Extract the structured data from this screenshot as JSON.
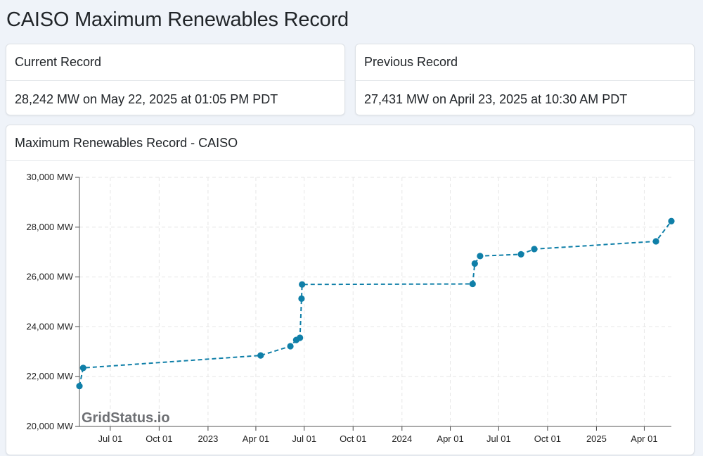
{
  "page": {
    "title": "CAISO Maximum Renewables Record"
  },
  "current_record": {
    "header": "Current Record",
    "value": "28,242 MW on May 22, 2025 at 01:05 PM PDT"
  },
  "previous_record": {
    "header": "Previous Record",
    "value": "27,431 MW on April 23, 2025 at 10:30 AM PDT"
  },
  "chart_card": {
    "header": "Maximum Renewables Record - CAISO",
    "watermark": "GridStatus.io"
  },
  "colors": {
    "series": "#0f7fa8",
    "grid": "#e6e6e6"
  },
  "chart_data": {
    "type": "line",
    "title": "Maximum Renewables Record - CAISO",
    "xlabel": "",
    "ylabel": "",
    "x_range": [
      "2022-05-04",
      "2025-05-22"
    ],
    "ylim": [
      20000,
      30000
    ],
    "grid": true,
    "line_style": "dashed",
    "markers": true,
    "y_ticks": [
      {
        "value": 20000,
        "label": "20,000 MW"
      },
      {
        "value": 22000,
        "label": "22,000 MW"
      },
      {
        "value": 24000,
        "label": "24,000 MW"
      },
      {
        "value": 26000,
        "label": "26,000 MW"
      },
      {
        "value": 28000,
        "label": "28,000 MW"
      },
      {
        "value": 30000,
        "label": "30,000 MW"
      }
    ],
    "x_ticks": [
      {
        "date": "2022-07-01",
        "label": "Jul 01"
      },
      {
        "date": "2022-10-01",
        "label": "Oct 01"
      },
      {
        "date": "2023-01-01",
        "label": "2023"
      },
      {
        "date": "2023-04-01",
        "label": "Apr 01"
      },
      {
        "date": "2023-07-01",
        "label": "Jul 01"
      },
      {
        "date": "2023-10-01",
        "label": "Oct 01"
      },
      {
        "date": "2024-01-01",
        "label": "2024"
      },
      {
        "date": "2024-04-01",
        "label": "Apr 01"
      },
      {
        "date": "2024-07-01",
        "label": "Jul 01"
      },
      {
        "date": "2024-10-01",
        "label": "Oct 01"
      },
      {
        "date": "2025-01-01",
        "label": "2025"
      },
      {
        "date": "2025-04-01",
        "label": "Apr 01"
      }
    ],
    "series": [
      {
        "points": [
          {
            "x": "2022-05-04",
            "y": 21620
          },
          {
            "x": "2022-05-11",
            "y": 22350
          },
          {
            "x": "2023-04-10",
            "y": 22850
          },
          {
            "x": "2023-06-05",
            "y": 23220
          },
          {
            "x": "2023-06-16",
            "y": 23470
          },
          {
            "x": "2023-06-23",
            "y": 23560
          },
          {
            "x": "2023-06-26",
            "y": 25130
          },
          {
            "x": "2023-06-27",
            "y": 25700
          },
          {
            "x": "2024-05-13",
            "y": 25720
          },
          {
            "x": "2024-05-17",
            "y": 26540
          },
          {
            "x": "2024-05-27",
            "y": 26840
          },
          {
            "x": "2024-08-12",
            "y": 26910
          },
          {
            "x": "2024-09-06",
            "y": 27120
          },
          {
            "x": "2025-04-23",
            "y": 27431
          },
          {
            "x": "2025-05-22",
            "y": 28242
          }
        ]
      }
    ]
  }
}
